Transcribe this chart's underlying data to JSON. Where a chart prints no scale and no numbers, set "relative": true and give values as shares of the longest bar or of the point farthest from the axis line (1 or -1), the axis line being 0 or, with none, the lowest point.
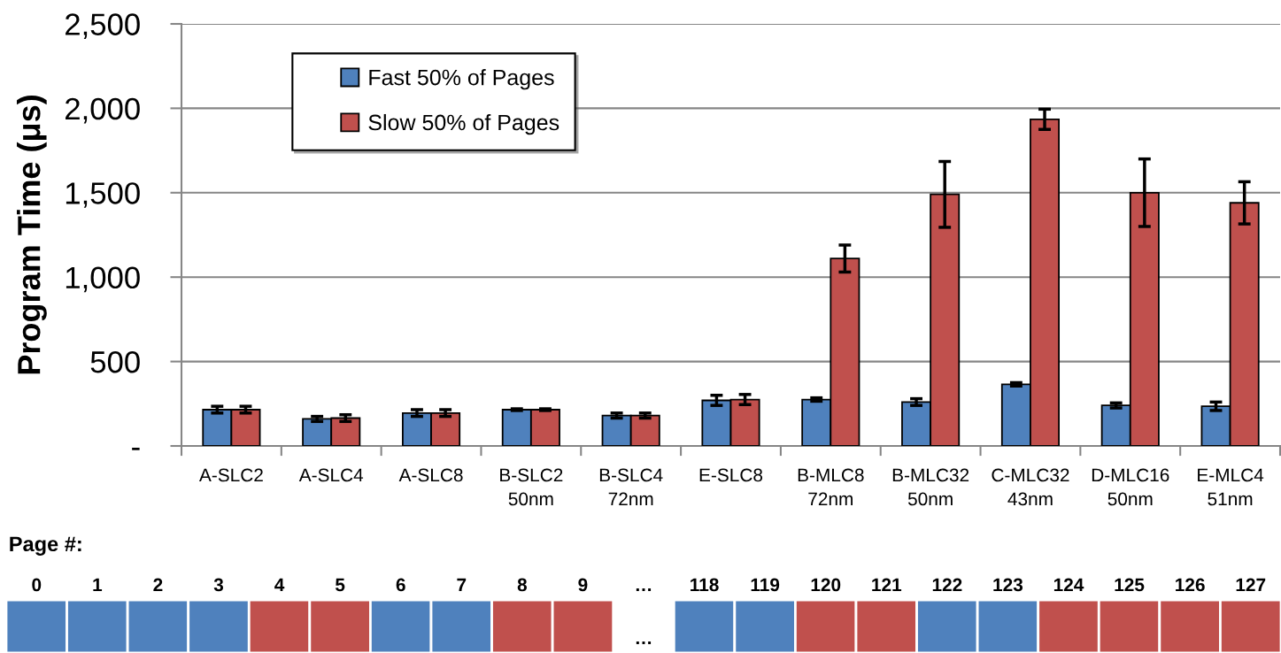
{
  "chart_data": [
    {
      "type": "bar",
      "ylabel": "Program Time (μs)",
      "categories": [
        "A-SLC2",
        "A-SLC4",
        "A-SLC8",
        "B-SLC2\n50nm",
        "B-SLC4\n72nm",
        "E-SLC8",
        "B-MLC8\n72nm",
        "B-MLC32\n50nm",
        "C-MLC32\n43nm",
        "D-MLC16\n50nm",
        "E-MLC4\n51nm"
      ],
      "series": [
        {
          "name": "Fast 50% of Pages",
          "color": "#4f81bd",
          "values": [
            215,
            160,
            195,
            215,
            180,
            270,
            275,
            260,
            365,
            240,
            235
          ],
          "errors": [
            20,
            15,
            20,
            5,
            15,
            30,
            10,
            20,
            10,
            15,
            25
          ]
        },
        {
          "name": "Slow 50% of Pages",
          "color": "#c0504d",
          "values": [
            215,
            165,
            195,
            215,
            180,
            275,
            1110,
            1490,
            1935,
            1500,
            1440
          ],
          "errors": [
            20,
            20,
            20,
            5,
            15,
            30,
            80,
            195,
            60,
            200,
            125
          ]
        }
      ],
      "ylim": [
        0,
        2500
      ],
      "yticks": [
        {
          "value": 0,
          "label": "-"
        },
        500,
        {
          "value": 1000,
          "label": "1,000"
        },
        {
          "value": 1500,
          "label": "1,500"
        },
        {
          "value": 2000,
          "label": "2,000"
        },
        {
          "value": 2500,
          "label": "2,500"
        }
      ],
      "grid": "y",
      "legend": "top left"
    },
    {
      "type": "bar",
      "title": "Page #:",
      "relative": true,
      "categories": [
        "0",
        "1",
        "2",
        "3",
        "4",
        "5",
        "6",
        "7",
        "8",
        "9",
        "…",
        "118",
        "119",
        "120",
        "121",
        "122",
        "123",
        "124",
        "125",
        "126",
        "127"
      ],
      "values": [
        1,
        1,
        1,
        1,
        1,
        1,
        1,
        1,
        1,
        1,
        null,
        1,
        1,
        1,
        1,
        1,
        1,
        1,
        1,
        1,
        1
      ],
      "colors": [
        "#4f81bd",
        "#4f81bd",
        "#4f81bd",
        "#4f81bd",
        "#c0504d",
        "#c0504d",
        "#4f81bd",
        "#4f81bd",
        "#c0504d",
        "#c0504d",
        null,
        "#4f81bd",
        "#4f81bd",
        "#c0504d",
        "#c0504d",
        "#4f81bd",
        "#4f81bd",
        "#c0504d",
        "#c0504d",
        "#c0504d",
        "#c0504d"
      ],
      "annotations": [
        "…"
      ]
    }
  ]
}
